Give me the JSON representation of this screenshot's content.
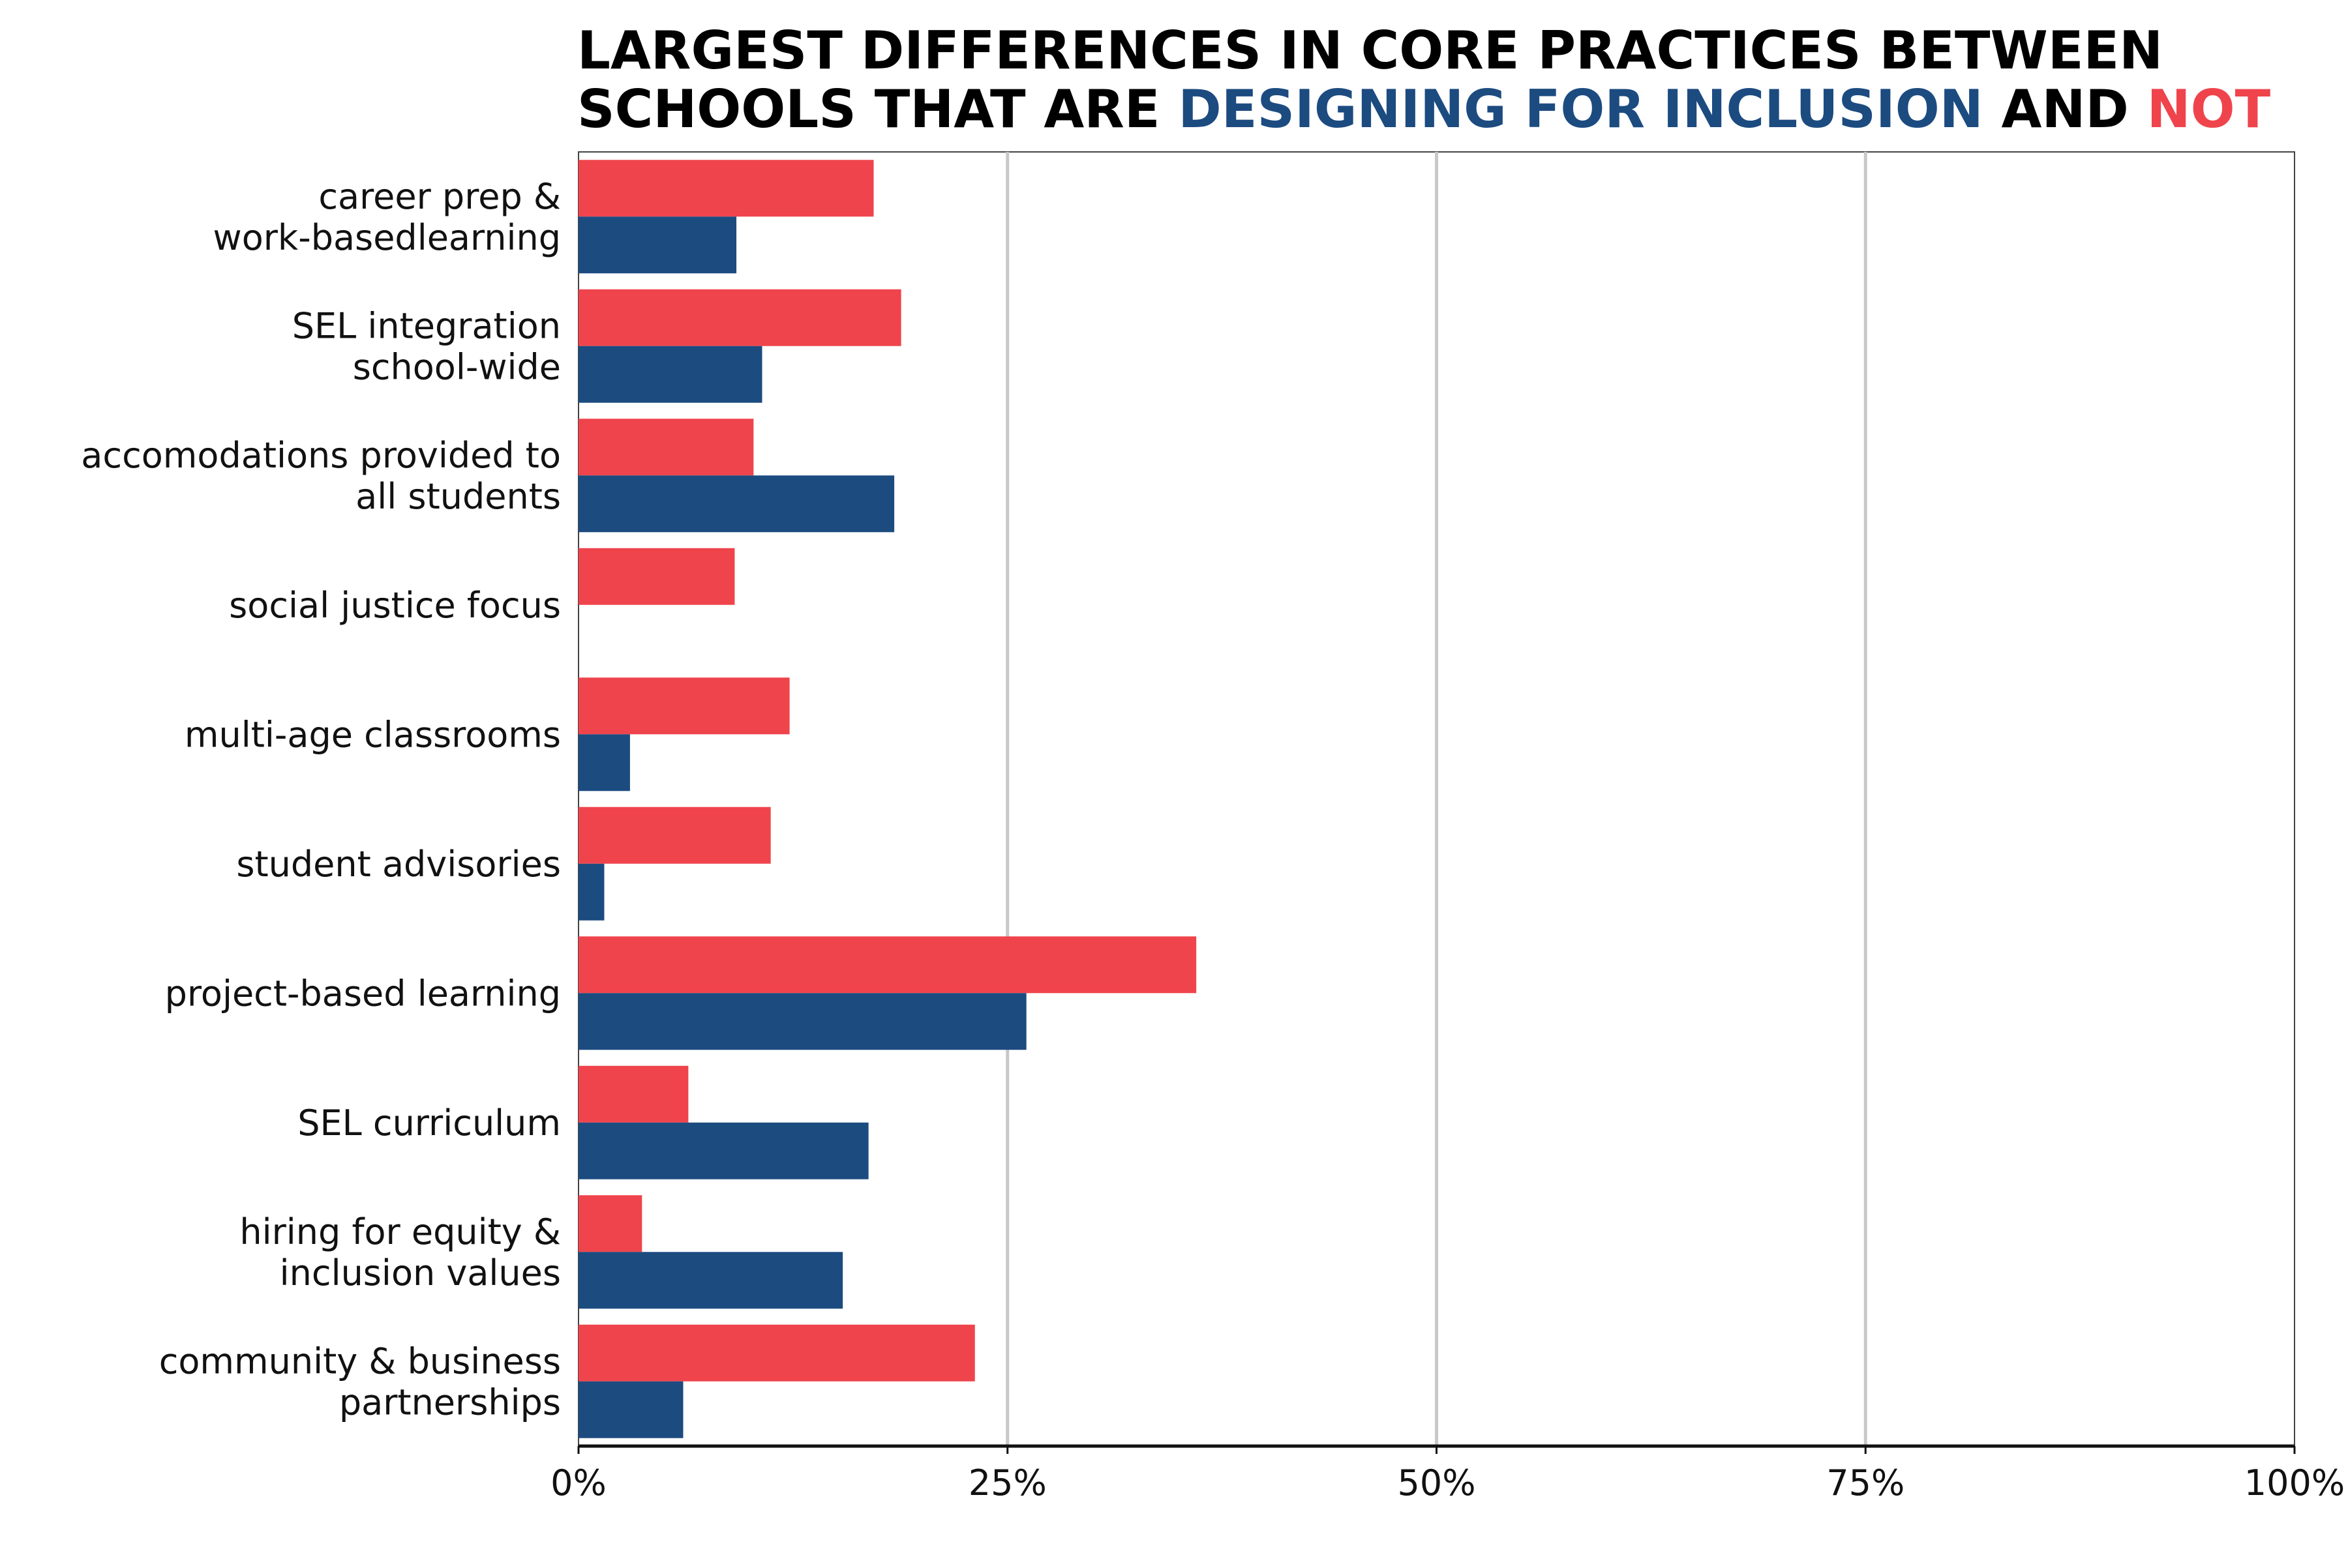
{
  "chart_data": {
    "type": "bar",
    "orientation": "horizontal",
    "title": {
      "line1": "LARGEST DIFFERENCES IN CORE PRACTICES BETWEEN",
      "line2_prefix": "SCHOOLS THAT ARE ",
      "line2_highlight1": "DESIGNING FOR INCLUSION",
      "line2_middle": " AND ",
      "line2_highlight2": "NOT"
    },
    "categories": [
      [
        "career prep &",
        "work-basedlearning"
      ],
      [
        "SEL integration",
        "school-wide"
      ],
      [
        "accomodations provided to",
        "all students"
      ],
      [
        "social justice focus"
      ],
      [
        "multi-age classrooms"
      ],
      [
        "student advisories"
      ],
      [
        "project-based learning"
      ],
      [
        "SEL curriculum"
      ],
      [
        "hiring for equity &",
        "inclusion values"
      ],
      [
        "community & business",
        "partnerships"
      ]
    ],
    "series": [
      {
        "color": "#ef444c",
        "values": [
          17.2,
          18.8,
          10.2,
          9.1,
          12.3,
          11.2,
          36.0,
          6.4,
          3.7,
          23.1
        ]
      },
      {
        "color": "#1c4b80",
        "values": [
          9.2,
          10.7,
          18.4,
          0.0,
          3.0,
          1.5,
          26.1,
          16.9,
          15.4,
          6.1
        ]
      }
    ],
    "xlim": [
      0,
      100
    ],
    "xticks": [
      0,
      25,
      50,
      75,
      100
    ],
    "xtick_labels": [
      "0%",
      "25%",
      "50%",
      "75%",
      "100%"
    ],
    "xlabel": "",
    "ylabel": "",
    "grid": true,
    "legend": "none"
  },
  "colors": {
    "grid": "#c8c8c8",
    "axis": "#111111",
    "frame": "#444444",
    "title": "#000000"
  }
}
